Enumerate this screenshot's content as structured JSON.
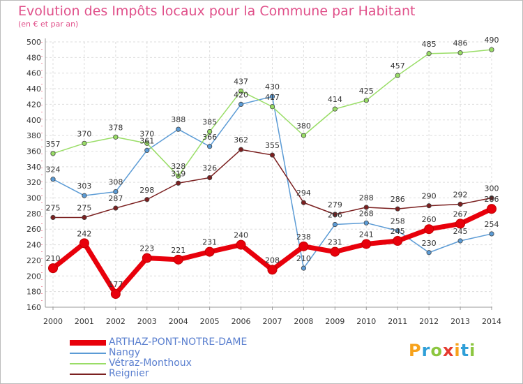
{
  "title": "Evolution des Impôts locaux pour la Commune par Habitant",
  "subtitle": "(en € et par an)",
  "brand": "Proxiti",
  "brand_colors": [
    "#f7a21b",
    "#2f9fd8",
    "#8cc63f",
    "#e53a2f"
  ],
  "chart_data": {
    "type": "line",
    "x": [
      "2000",
      "2001",
      "2002",
      "2003",
      "2004",
      "2005",
      "2006",
      "2007",
      "2008",
      "2009",
      "2010",
      "2011",
      "2012",
      "2013",
      "2014"
    ],
    "ylim": [
      160,
      500
    ],
    "yticks": [
      160,
      180,
      200,
      220,
      240,
      260,
      280,
      300,
      320,
      340,
      360,
      380,
      400,
      420,
      440,
      460,
      480,
      500
    ],
    "grid": true,
    "legend": "bottom-left",
    "series": [
      {
        "name": "ARTHAZ-PONT-NOTRE-DAME",
        "color": "#e8000b",
        "values": [
          210,
          242,
          177,
          223,
          221,
          231,
          240,
          208,
          238,
          231,
          241,
          245,
          260,
          267,
          286
        ]
      },
      {
        "name": "Nangy",
        "color": "#5b9bd5",
        "values": [
          324,
          303,
          308,
          361,
          388,
          366,
          420,
          430,
          210,
          266,
          268,
          258,
          230,
          245,
          254
        ]
      },
      {
        "name": "Vétraz-Monthoux",
        "color": "#99dd66",
        "values": [
          357,
          370,
          378,
          370,
          328,
          385,
          437,
          417,
          380,
          414,
          425,
          457,
          485,
          486,
          490
        ]
      },
      {
        "name": "Reignier",
        "color": "#7b2020",
        "values": [
          275,
          275,
          287,
          298,
          319,
          326,
          362,
          355,
          294,
          279,
          288,
          286,
          290,
          292,
          300
        ]
      }
    ]
  }
}
